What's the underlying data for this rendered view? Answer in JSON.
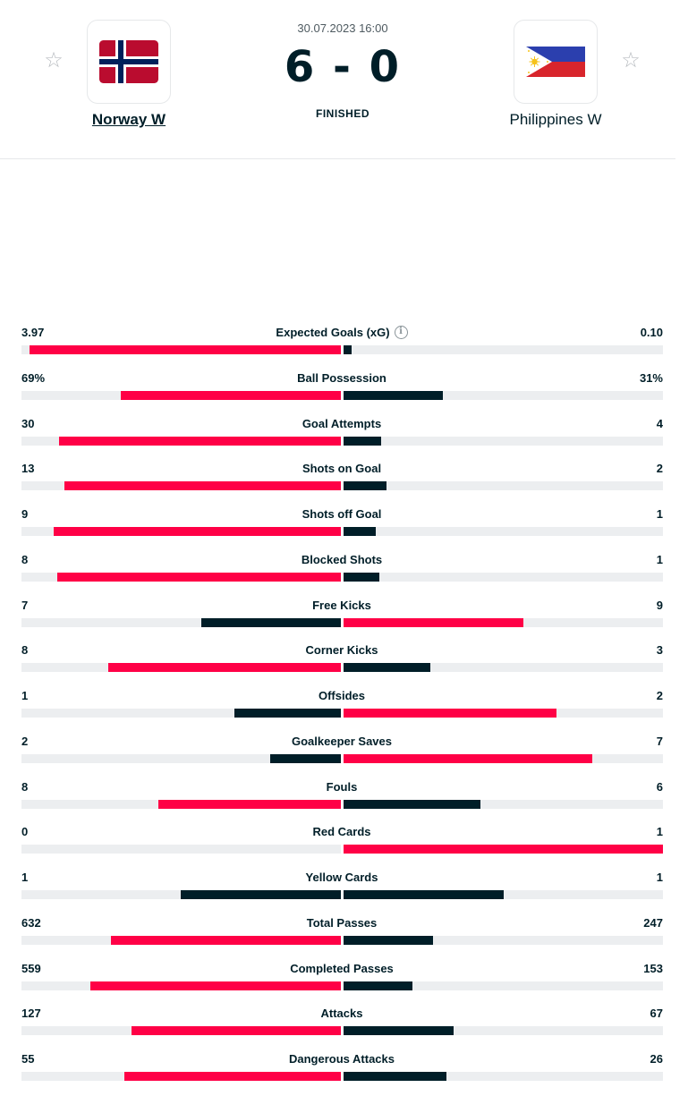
{
  "match": {
    "datetime": "30.07.2023 16:00",
    "score": "6 - 0",
    "status": "FINISHED",
    "home": {
      "name": "Norway W",
      "flag": "norway-flag"
    },
    "away": {
      "name": "Philippines W",
      "flag": "philippines-flag"
    }
  },
  "colors": {
    "accent": "#ff0046",
    "dark": "#001e28",
    "track": "#eceef0"
  },
  "stats": [
    {
      "label": "Expected Goals (xG)",
      "home": "3.97",
      "away": "0.10",
      "home_num": 3.97,
      "away_num": 0.1,
      "info": true
    },
    {
      "label": "Ball Possession",
      "home": "69%",
      "away": "31%",
      "home_num": 69,
      "away_num": 31
    },
    {
      "label": "Goal Attempts",
      "home": "30",
      "away": "4",
      "home_num": 30,
      "away_num": 4
    },
    {
      "label": "Shots on Goal",
      "home": "13",
      "away": "2",
      "home_num": 13,
      "away_num": 2
    },
    {
      "label": "Shots off Goal",
      "home": "9",
      "away": "1",
      "home_num": 9,
      "away_num": 1
    },
    {
      "label": "Blocked Shots",
      "home": "8",
      "away": "1",
      "home_num": 8,
      "away_num": 1
    },
    {
      "label": "Free Kicks",
      "home": "7",
      "away": "9",
      "home_num": 7,
      "away_num": 9
    },
    {
      "label": "Corner Kicks",
      "home": "8",
      "away": "3",
      "home_num": 8,
      "away_num": 3
    },
    {
      "label": "Offsides",
      "home": "1",
      "away": "2",
      "home_num": 1,
      "away_num": 2
    },
    {
      "label": "Goalkeeper Saves",
      "home": "2",
      "away": "7",
      "home_num": 2,
      "away_num": 7
    },
    {
      "label": "Fouls",
      "home": "8",
      "away": "6",
      "home_num": 8,
      "away_num": 6
    },
    {
      "label": "Red Cards",
      "home": "0",
      "away": "1",
      "home_num": 0,
      "away_num": 1
    },
    {
      "label": "Yellow Cards",
      "home": "1",
      "away": "1",
      "home_num": 1,
      "away_num": 1
    },
    {
      "label": "Total Passes",
      "home": "632",
      "away": "247",
      "home_num": 632,
      "away_num": 247
    },
    {
      "label": "Completed Passes",
      "home": "559",
      "away": "153",
      "home_num": 559,
      "away_num": 153
    },
    {
      "label": "Attacks",
      "home": "127",
      "away": "67",
      "home_num": 127,
      "away_num": 67
    },
    {
      "label": "Dangerous Attacks",
      "home": "55",
      "away": "26",
      "home_num": 55,
      "away_num": 26
    }
  ]
}
